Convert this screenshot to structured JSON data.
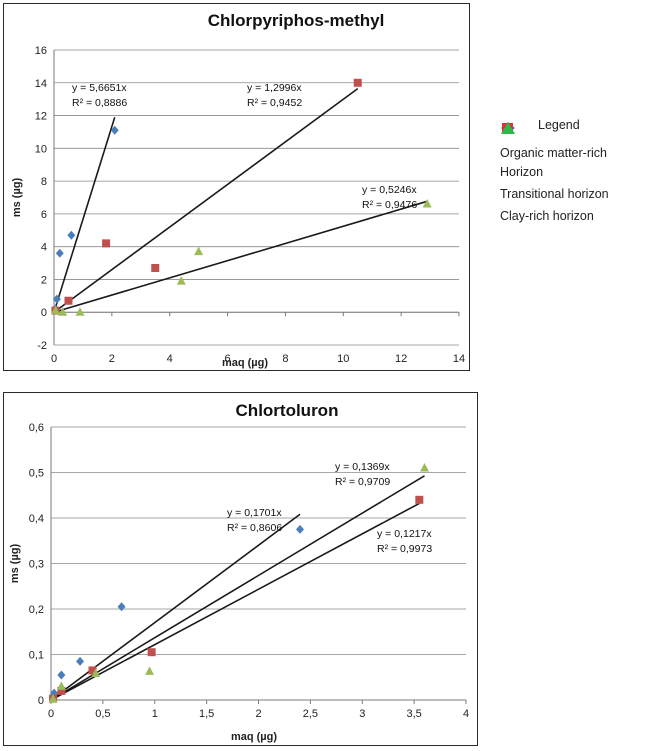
{
  "legend": {
    "title": "Legend",
    "items": [
      {
        "label": "Organic matter-rich Horizon",
        "marker": "diamond",
        "color": "#1b8fd6"
      },
      {
        "label": "Transitional horizon",
        "marker": "square",
        "color": "#d9333a"
      },
      {
        "label": "Clay-rich horizon",
        "marker": "triangle",
        "color": "#2fb84a"
      }
    ]
  },
  "chart_data": [
    {
      "type": "scatter",
      "title": "Chlorpyriphos-methyl",
      "xlabel": "maq (µg)",
      "ylabel": "ms (µg)",
      "xlim": [
        0,
        14
      ],
      "ylim": [
        -2,
        16
      ],
      "x_ticks": [
        0,
        2,
        4,
        6,
        8,
        10,
        12,
        14
      ],
      "x_tick_labels": [
        "0",
        "2",
        "4",
        "6",
        "8",
        "10",
        "12",
        "14"
      ],
      "y_ticks": [
        -2,
        0,
        2,
        4,
        6,
        8,
        10,
        12,
        14,
        16
      ],
      "y_tick_labels": [
        "-2",
        "0",
        "2",
        "4",
        "6",
        "8",
        "10",
        "12",
        "14",
        "16"
      ],
      "grid": true,
      "series": [
        {
          "name": "Organic matter-rich Horizon",
          "marker": "diamond",
          "color": "#4a7ebb",
          "points": [
            [
              0.05,
              0.2
            ],
            [
              0.1,
              0.8
            ],
            [
              0.2,
              3.6
            ],
            [
              0.6,
              4.7
            ],
            [
              2.1,
              11.1
            ]
          ],
          "trendline": {
            "slope": 5.6651,
            "x_end": 2.1,
            "equation": "y = 5,6651x",
            "r2": "R² = 0,8886"
          }
        },
        {
          "name": "Transitional horizon",
          "marker": "square",
          "color": "#c0504d",
          "points": [
            [
              0.05,
              0.1
            ],
            [
              0.5,
              0.7
            ],
            [
              1.8,
              4.2
            ],
            [
              3.5,
              2.7
            ],
            [
              10.5,
              14.0
            ]
          ],
          "trendline": {
            "slope": 1.2996,
            "x_end": 10.5,
            "equation": "y = 1,2996x",
            "r2": "R² = 0,9452"
          }
        },
        {
          "name": "Clay-rich horizon",
          "marker": "triangle",
          "color": "#9bbb59",
          "points": [
            [
              0.05,
              0.1
            ],
            [
              0.3,
              0.0
            ],
            [
              0.9,
              0.0
            ],
            [
              4.4,
              1.9
            ],
            [
              5.0,
              3.7
            ],
            [
              12.9,
              6.6
            ]
          ],
          "trendline": {
            "slope": 0.5246,
            "x_end": 12.9,
            "equation": "y = 0,5246x",
            "r2": "R² = 0,9476"
          }
        }
      ]
    },
    {
      "type": "scatter",
      "title": "Chlortoluron",
      "xlabel": "maq (µg)",
      "ylabel": "ms (µg)",
      "xlim": [
        0,
        4
      ],
      "ylim": [
        0,
        0.6
      ],
      "x_ticks": [
        0,
        0.5,
        1,
        1.5,
        2,
        2.5,
        3,
        3.5,
        4
      ],
      "x_tick_labels": [
        "0",
        "0,5",
        "1",
        "1,5",
        "2",
        "2,5",
        "3",
        "3,5",
        "4"
      ],
      "y_ticks": [
        0,
        0.1,
        0.2,
        0.3,
        0.4,
        0.5,
        0.6
      ],
      "y_tick_labels": [
        "0",
        "0,1",
        "0,2",
        "0,3",
        "0,4",
        "0,5",
        "0,6"
      ],
      "grid": true,
      "series": [
        {
          "name": "Organic matter-rich Horizon",
          "marker": "diamond",
          "color": "#4a7ebb",
          "points": [
            [
              0.02,
              0.005
            ],
            [
              0.03,
              0.015
            ],
            [
              0.1,
              0.055
            ],
            [
              0.28,
              0.085
            ],
            [
              0.68,
              0.205
            ],
            [
              2.4,
              0.375
            ]
          ],
          "trendline": {
            "slope": 0.1701,
            "x_end": 2.4,
            "equation": "y = 0,1701x",
            "r2": "R² = 0,8606"
          }
        },
        {
          "name": "Transitional horizon",
          "marker": "square",
          "color": "#c0504d",
          "points": [
            [
              0.02,
              0.003
            ],
            [
              0.1,
              0.02
            ],
            [
              0.4,
              0.065
            ],
            [
              0.97,
              0.105
            ],
            [
              3.55,
              0.44
            ]
          ],
          "trendline": {
            "slope": 0.1217,
            "x_end": 3.55,
            "equation": "y = 0,1217x",
            "r2": "R² = 0,9973"
          }
        },
        {
          "name": "Clay-rich horizon",
          "marker": "triangle",
          "color": "#9bbb59",
          "points": [
            [
              0.02,
              0.002
            ],
            [
              0.1,
              0.03
            ],
            [
              0.43,
              0.058
            ],
            [
              0.95,
              0.063
            ],
            [
              3.6,
              0.51
            ]
          ],
          "trendline": {
            "slope": 0.1369,
            "x_end": 3.6,
            "equation": "y = 0,1369x",
            "r2": "R² = 0,9709"
          }
        }
      ]
    }
  ]
}
